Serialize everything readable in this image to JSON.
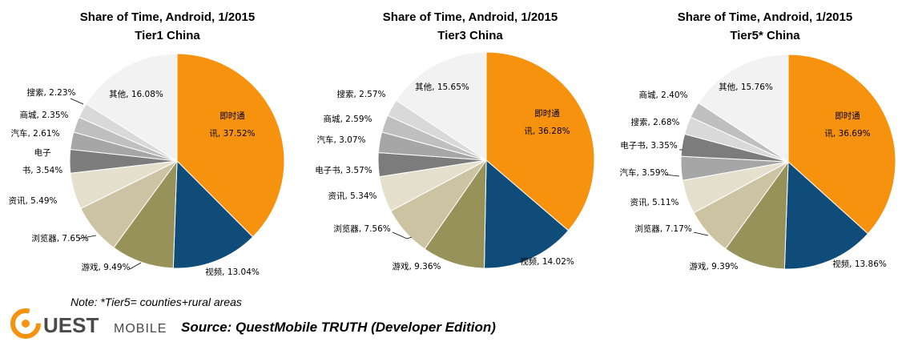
{
  "colors": {
    "im": "#F7920F",
    "video": "#0F4C79",
    "game": "#97915A",
    "browser": "#CBC3A1",
    "news": "#E5E0CE",
    "ebook": "#7C7C7C",
    "car": "#A6A6A6",
    "mall": "#BFBFBF",
    "search": "#D9D9D9",
    "other": "#F2F2F2"
  },
  "chart_data": [
    {
      "type": "pie",
      "title": "Share of Time, Android,  1/2015",
      "subtitle": "Tier1 China",
      "slices": [
        {
          "key": "im",
          "label": "即时通讯, 37.52%",
          "lines": [
            "即时通",
            "讯, 37.52%"
          ],
          "value": 37.52
        },
        {
          "key": "video",
          "label": "视频, 13.04%",
          "value": 13.04
        },
        {
          "key": "game",
          "label": "游戏, 9.49%",
          "value": 9.49
        },
        {
          "key": "browser",
          "label": "浏览器, 7.65%",
          "value": 7.65
        },
        {
          "key": "news",
          "label": "资讯, 5.49%",
          "value": 5.49
        },
        {
          "key": "ebook",
          "label": "电子书, 3.54%",
          "lines": [
            "电子",
            "书, 3.54%"
          ],
          "value": 3.54
        },
        {
          "key": "car",
          "label": "汽车, 2.61%",
          "value": 2.61
        },
        {
          "key": "mall",
          "label": "商城, 2.35%",
          "value": 2.35
        },
        {
          "key": "search",
          "label": "搜索, 2.23%",
          "value": 2.23
        },
        {
          "key": "other",
          "label": "其他, 16.08%",
          "value": 16.08
        }
      ]
    },
    {
      "type": "pie",
      "title": "Share of Time, Android,  1/2015",
      "subtitle": "Tier3 China",
      "slices": [
        {
          "key": "im",
          "label": "即时通讯, 36.28%",
          "lines": [
            "即时通",
            "讯, 36.28%"
          ],
          "value": 36.28
        },
        {
          "key": "video",
          "label": "视频, 14.02%",
          "value": 14.02
        },
        {
          "key": "game",
          "label": "游戏, 9.36%",
          "value": 9.36
        },
        {
          "key": "browser",
          "label": "浏览器, 7.56%",
          "value": 7.56
        },
        {
          "key": "news",
          "label": "资讯, 5.34%",
          "value": 5.34
        },
        {
          "key": "ebook",
          "label": "电子书, 3.57%",
          "value": 3.57
        },
        {
          "key": "car",
          "label": "汽车, 3.07%",
          "value": 3.07
        },
        {
          "key": "mall",
          "label": "商城, 2.59%",
          "value": 2.59
        },
        {
          "key": "search",
          "label": "搜索, 2.57%",
          "value": 2.57
        },
        {
          "key": "other",
          "label": "其他, 15.65%",
          "value": 15.65
        }
      ]
    },
    {
      "type": "pie",
      "title": "Share of Time, Android,  1/2015",
      "subtitle": "Tier5* China",
      "slices": [
        {
          "key": "im",
          "label": "即时通讯, 36.69%",
          "lines": [
            "即时通",
            "讯, 36.69%"
          ],
          "value": 36.69
        },
        {
          "key": "video",
          "label": "视频, 13.86%",
          "value": 13.86
        },
        {
          "key": "game",
          "label": "游戏, 9.39%",
          "value": 9.39
        },
        {
          "key": "browser",
          "label": "浏览器, 7.17%",
          "value": 7.17
        },
        {
          "key": "news",
          "label": "资讯, 5.11%",
          "value": 5.11
        },
        {
          "key": "car",
          "label": "汽车, 3.59%",
          "value": 3.59
        },
        {
          "key": "ebook",
          "label": "电子书, 3.35%",
          "value": 3.35
        },
        {
          "key": "search",
          "label": "搜索, 2.68%",
          "value": 2.68
        },
        {
          "key": "mall",
          "label": "商城, 2.40%",
          "value": 2.4
        },
        {
          "key": "other",
          "label": "其他, 15.76%",
          "value": 15.76
        }
      ]
    }
  ],
  "footer": {
    "note": "Note: *Tier5= counties+rural areas",
    "logo_text": "QUEST MOBILE",
    "source": "Source: QuestMobile TRUTH (Developer Edition)"
  }
}
